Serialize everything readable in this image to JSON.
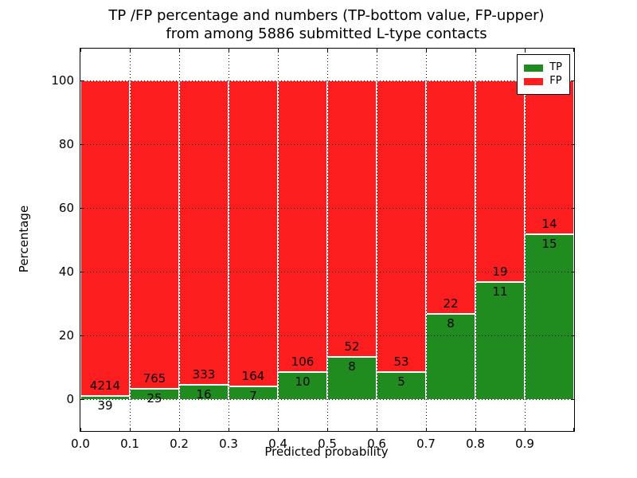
{
  "title": {
    "line1": "TP /FP percentage and numbers (TP-bottom value, FP-upper)",
    "line2": "from among 5886 submitted L-type contacts"
  },
  "axes": {
    "xlabel": "Predicted probability",
    "ylabel": "Percentage"
  },
  "legend": {
    "position": "upper right",
    "entries": [
      {
        "label": "TP",
        "color": "#208c20"
      },
      {
        "label": "FP",
        "color": "#fc1e1e"
      }
    ]
  },
  "chart_data": {
    "type": "bar",
    "stacked": true,
    "title": "TP /FP percentage and numbers (TP-bottom value, FP-upper) from among 5886 submitted L-type contacts",
    "xlabel": "Predicted probability",
    "ylabel": "Percentage",
    "ylim": [
      -10,
      110
    ],
    "yticks": [
      0,
      20,
      40,
      60,
      80,
      100
    ],
    "ytick_labels": [
      "0",
      "20",
      "40",
      "60",
      "80",
      "100"
    ],
    "xtick_labels": [
      "0.0",
      "0.1",
      "0.2",
      "0.3",
      "0.4",
      "0.5",
      "0.6",
      "0.7",
      "0.8",
      "0.9"
    ],
    "grid": "dotted black, horizontal and vertical, drawn over bars",
    "categories": [
      "0.0-0.1",
      "0.1-0.2",
      "0.2-0.3",
      "0.3-0.4",
      "0.4-0.5",
      "0.5-0.6",
      "0.6-0.7",
      "0.7-0.8",
      "0.8-0.9",
      "0.9-1.0"
    ],
    "series": [
      {
        "name": "TP",
        "color": "#208c20",
        "values": [
          39,
          25,
          16,
          7,
          10,
          8,
          5,
          8,
          11,
          15
        ]
      },
      {
        "name": "FP",
        "color": "#fc1e1e",
        "values": [
          4214,
          765,
          333,
          164,
          106,
          52,
          53,
          22,
          19,
          14
        ]
      }
    ],
    "representation": "Each bar is normalized to 100%: green TP share at bottom, red FP share on top. Annotated numbers are raw counts (FP above boundary, TP below).",
    "tp_percent_per_bin": [
      0.92,
      3.16,
      4.58,
      4.09,
      8.62,
      13.33,
      8.62,
      26.67,
      36.67,
      51.72
    ]
  }
}
